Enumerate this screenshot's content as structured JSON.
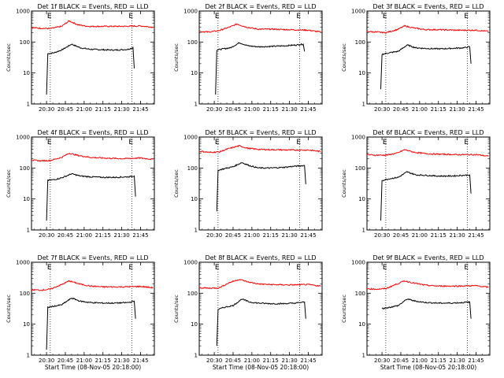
{
  "chart_data": [
    {
      "type": "line",
      "title": "Det 1f BLACK = Events, RED = LLD",
      "xlabel": "",
      "ylabel": "Counts/sec",
      "yscale": "log",
      "ylim": [
        1,
        1000
      ],
      "x_ticks": [
        "20:30",
        "20:45",
        "21:00",
        "21:15",
        "21:30",
        "21:45"
      ],
      "flags": [
        "E",
        "E"
      ],
      "series": [
        {
          "name": "Events",
          "color": "#000000",
          "x": [
            "20:30",
            "20:31",
            "20:36",
            "20:42",
            "20:50",
            "20:57",
            "21:05",
            "21:15",
            "21:25",
            "21:35",
            "21:39",
            "21:40"
          ],
          "values": [
            2,
            42,
            45,
            55,
            85,
            65,
            58,
            56,
            55,
            58,
            66,
            14
          ]
        },
        {
          "name": "LLD",
          "color": "#ff0000",
          "x": [
            "20:18",
            "20:24",
            "20:33",
            "20:42",
            "20:48",
            "20:55",
            "21:03",
            "21:15",
            "21:30",
            "21:45",
            "21:55"
          ],
          "values": [
            290,
            280,
            270,
            320,
            480,
            360,
            320,
            320,
            320,
            330,
            300
          ]
        }
      ]
    },
    {
      "type": "line",
      "title": "Det 2f BLACK = Events, RED = LLD",
      "xlabel": "",
      "ylabel": "Counts/sec",
      "yscale": "log",
      "ylim": [
        1,
        1000
      ],
      "x_ticks": [
        "20:30",
        "20:45",
        "21:00",
        "21:15",
        "21:30",
        "21:45"
      ],
      "flags": [
        "E",
        "E"
      ],
      "series": [
        {
          "name": "Events",
          "color": "#000000",
          "x": [
            "20:31",
            "20:32",
            "20:37",
            "20:43",
            "20:50",
            "20:57",
            "21:05",
            "21:15",
            "21:25",
            "21:35",
            "21:41",
            "21:42"
          ],
          "values": [
            2,
            55,
            60,
            65,
            95,
            75,
            70,
            72,
            75,
            80,
            85,
            50
          ]
        },
        {
          "name": "LLD",
          "color": "#ff0000",
          "x": [
            "20:18",
            "20:25",
            "20:33",
            "20:42",
            "20:48",
            "20:56",
            "21:05",
            "21:15",
            "21:30",
            "21:45",
            "21:55"
          ],
          "values": [
            220,
            210,
            230,
            300,
            380,
            300,
            260,
            260,
            250,
            240,
            210
          ]
        }
      ]
    },
    {
      "type": "line",
      "title": "Det 3f BLACK = Events, RED = LLD",
      "xlabel": "",
      "ylabel": "Counts/sec",
      "yscale": "log",
      "ylim": [
        1,
        1000
      ],
      "x_ticks": [
        "20:30",
        "20:45",
        "21:00",
        "21:15",
        "21:30",
        "21:45"
      ],
      "flags": [
        "E",
        "E"
      ],
      "series": [
        {
          "name": "Events",
          "color": "#000000",
          "x": [
            "20:29",
            "20:30",
            "20:36",
            "20:43",
            "20:50",
            "20:57",
            "21:05",
            "21:15",
            "21:25",
            "21:35",
            "21:40",
            "21:41"
          ],
          "values": [
            3,
            40,
            45,
            50,
            80,
            65,
            62,
            60,
            62,
            65,
            70,
            20
          ]
        },
        {
          "name": "LLD",
          "color": "#ff0000",
          "x": [
            "20:18",
            "20:25",
            "20:33",
            "20:42",
            "20:48",
            "20:56",
            "21:05",
            "21:15",
            "21:30",
            "21:45",
            "21:55"
          ],
          "values": [
            220,
            210,
            200,
            250,
            330,
            280,
            250,
            250,
            240,
            240,
            220
          ]
        }
      ]
    },
    {
      "type": "line",
      "title": "Det 4f BLACK = Events, RED = LLD",
      "xlabel": "",
      "ylabel": "Counts/sec",
      "yscale": "log",
      "ylim": [
        1,
        1000
      ],
      "x_ticks": [
        "20:30",
        "20:45",
        "21:00",
        "21:15",
        "21:30",
        "21:45"
      ],
      "flags": [
        "E",
        "E"
      ],
      "series": [
        {
          "name": "Events",
          "color": "#000000",
          "x": [
            "20:30",
            "20:31",
            "20:36",
            "20:42",
            "20:50",
            "20:57",
            "21:05",
            "21:15",
            "21:25",
            "21:35",
            "21:40",
            "21:41"
          ],
          "values": [
            2,
            40,
            42,
            48,
            65,
            55,
            52,
            50,
            50,
            52,
            55,
            12
          ]
        },
        {
          "name": "LLD",
          "color": "#ff0000",
          "x": [
            "20:18",
            "20:25",
            "20:33",
            "20:42",
            "20:48",
            "20:56",
            "21:05",
            "21:15",
            "21:30",
            "21:45",
            "21:55"
          ],
          "values": [
            180,
            170,
            175,
            220,
            300,
            250,
            220,
            210,
            200,
            210,
            190
          ]
        }
      ]
    },
    {
      "type": "line",
      "title": "Det 5f BLACK = Events, RED = LLD",
      "xlabel": "",
      "ylabel": "Counts/sec",
      "yscale": "log",
      "ylim": [
        1,
        1000
      ],
      "x_ticks": [
        "20:30",
        "20:45",
        "21:00",
        "21:15",
        "21:30",
        "21:45"
      ],
      "flags": [
        "E",
        "E"
      ],
      "series": [
        {
          "name": "Events",
          "color": "#000000",
          "x": [
            "20:32",
            "20:33",
            "20:38",
            "20:45",
            "20:52",
            "20:58",
            "21:05",
            "21:15",
            "21:25",
            "21:35",
            "21:42",
            "21:43"
          ],
          "values": [
            4,
            85,
            95,
            110,
            150,
            120,
            100,
            100,
            105,
            115,
            120,
            30
          ]
        },
        {
          "name": "LLD",
          "color": "#ff0000",
          "x": [
            "20:18",
            "20:26",
            "20:34",
            "20:42",
            "20:50",
            "20:57",
            "21:05",
            "21:15",
            "21:30",
            "21:45",
            "21:55"
          ],
          "values": [
            350,
            320,
            330,
            430,
            520,
            430,
            400,
            390,
            380,
            380,
            340
          ]
        }
      ]
    },
    {
      "type": "line",
      "title": "Det 6f BLACK = Events, RED = LLD",
      "xlabel": "",
      "ylabel": "Counts/sec",
      "yscale": "log",
      "ylim": [
        1,
        1000
      ],
      "x_ticks": [
        "20:30",
        "20:45",
        "21:00",
        "21:15",
        "21:30",
        "21:45"
      ],
      "flags": [
        "E",
        "E"
      ],
      "series": [
        {
          "name": "Events",
          "color": "#000000",
          "x": [
            "20:29",
            "20:30",
            "20:36",
            "20:43",
            "20:50",
            "20:57",
            "21:05",
            "21:15",
            "21:25",
            "21:35",
            "21:40",
            "21:41"
          ],
          "values": [
            2,
            40,
            45,
            50,
            75,
            60,
            58,
            55,
            55,
            58,
            60,
            15
          ]
        },
        {
          "name": "LLD",
          "color": "#ff0000",
          "x": [
            "20:18",
            "20:25",
            "20:33",
            "20:42",
            "20:48",
            "20:56",
            "21:05",
            "21:15",
            "21:30",
            "21:45",
            "21:55"
          ],
          "values": [
            270,
            260,
            260,
            300,
            390,
            320,
            290,
            280,
            270,
            270,
            240
          ]
        }
      ]
    },
    {
      "type": "line",
      "title": "Det 7f BLACK = Events, RED = LLD",
      "xlabel": "Start Time (08-Nov-05 20:18:00)",
      "ylabel": "Counts/sec",
      "yscale": "log",
      "ylim": [
        1,
        1000
      ],
      "x_ticks": [
        "20:30",
        "20:45",
        "21:00",
        "21:15",
        "21:30",
        "21:45"
      ],
      "flags": [
        "E",
        "E"
      ],
      "series": [
        {
          "name": "Events",
          "color": "#000000",
          "x": [
            "20:30",
            "20:31",
            "20:36",
            "20:42",
            "20:50",
            "20:57",
            "21:05",
            "21:15",
            "21:25",
            "21:35",
            "21:40",
            "21:41"
          ],
          "values": [
            1.5,
            35,
            38,
            42,
            70,
            55,
            50,
            48,
            48,
            50,
            55,
            15
          ]
        },
        {
          "name": "LLD",
          "color": "#ff0000",
          "x": [
            "20:18",
            "20:25",
            "20:33",
            "20:42",
            "20:48",
            "20:56",
            "21:05",
            "21:15",
            "21:30",
            "21:45",
            "21:55"
          ],
          "values": [
            130,
            125,
            135,
            190,
            250,
            200,
            170,
            160,
            160,
            165,
            150
          ]
        }
      ]
    },
    {
      "type": "line",
      "title": "Det 8f BLACK = Events, RED = LLD",
      "xlabel": "Start Time (08-Nov-05 20:18:00)",
      "ylabel": "Counts/sec",
      "yscale": "log",
      "ylim": [
        1,
        1000
      ],
      "x_ticks": [
        "20:30",
        "20:45",
        "21:00",
        "21:15",
        "21:30",
        "21:45"
      ],
      "flags": [
        "E",
        "E"
      ],
      "series": [
        {
          "name": "Events",
          "color": "#000000",
          "x": [
            "20:32",
            "20:33",
            "20:38",
            "20:45",
            "20:52",
            "20:58",
            "21:05",
            "21:15",
            "21:25",
            "21:35",
            "21:42",
            "21:43"
          ],
          "values": [
            2,
            30,
            35,
            40,
            65,
            52,
            48,
            46,
            46,
            48,
            52,
            15
          ]
        },
        {
          "name": "LLD",
          "color": "#ff0000",
          "x": [
            "20:18",
            "20:26",
            "20:34",
            "20:42",
            "20:50",
            "20:57",
            "21:05",
            "21:15",
            "21:30",
            "21:45",
            "21:55"
          ],
          "values": [
            150,
            145,
            150,
            220,
            280,
            230,
            200,
            190,
            185,
            190,
            170
          ]
        }
      ]
    },
    {
      "type": "line",
      "title": "Det 9f BLACK = Events, RED = LLD",
      "xlabel": "Start Time (08-Nov-05 20:18:00)",
      "ylabel": "Counts/sec",
      "yscale": "log",
      "ylim": [
        1,
        1000
      ],
      "x_ticks": [
        "20:30",
        "20:45",
        "21:00",
        "21:15",
        "21:30",
        "21:45"
      ],
      "flags": [
        "E",
        "E"
      ],
      "series": [
        {
          "name": "Events",
          "color": "#000000",
          "x": [
            "20:30",
            "20:36",
            "20:43",
            "20:50",
            "20:57",
            "21:05",
            "21:15",
            "21:25",
            "21:35",
            "21:40",
            "21:41"
          ],
          "values": [
            32,
            35,
            40,
            65,
            55,
            50,
            48,
            48,
            50,
            52,
            15
          ]
        },
        {
          "name": "LLD",
          "color": "#ff0000",
          "x": [
            "20:18",
            "20:25",
            "20:33",
            "20:42",
            "20:48",
            "20:56",
            "21:05",
            "21:15",
            "21:30",
            "21:45",
            "21:55"
          ],
          "values": [
            140,
            135,
            140,
            200,
            250,
            210,
            180,
            170,
            170,
            175,
            155
          ]
        }
      ]
    }
  ]
}
